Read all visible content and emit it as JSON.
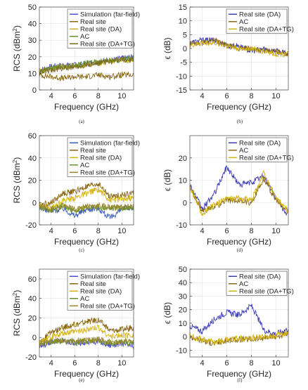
{
  "panels": [
    {
      "caption": "(a)",
      "chart_data": {
        "type": "line",
        "xlabel": "Frequency (GHz)",
        "ylabel_parts": [
          "RCS (dBm",
          "2",
          ")"
        ],
        "xlim": [
          3,
          11
        ],
        "ylim": [
          0,
          50
        ],
        "xticks": [
          4,
          6,
          8,
          10
        ],
        "yticks": [
          0,
          10,
          20,
          30,
          40,
          50
        ],
        "grid": true,
        "legend_position": "top-right",
        "x": [
          3,
          4,
          5,
          6,
          7,
          8,
          9,
          10,
          11
        ],
        "series": [
          {
            "name": "Simulation (far-field)",
            "color": "#5a4fcf",
            "values": [
              12,
              14,
              15,
              15,
              16,
              17,
              18,
              19,
              20
            ]
          },
          {
            "name": "Real site",
            "color": "#8b6914",
            "values": [
              9,
              8,
              7,
              8,
              8,
              9,
              8,
              9,
              9
            ]
          },
          {
            "name": "Real site (DA)",
            "color": "#c9b037",
            "values": [
              11,
              13,
              14,
              14,
              15,
              16,
              17,
              18,
              18
            ]
          },
          {
            "name": "AC",
            "color": "#6a8f2a",
            "values": [
              11,
              13,
              14,
              15,
              16,
              17,
              18,
              18,
              19
            ]
          },
          {
            "name": "Real site (DA+TG)",
            "color": "#7a6a1e",
            "values": [
              11,
              12,
              13,
              14,
              15,
              16,
              17,
              18,
              18
            ]
          }
        ]
      }
    },
    {
      "caption": "(b)",
      "chart_data": {
        "type": "line",
        "xlabel": "Frequency (GHz)",
        "ylabel_parts": [
          "ϵ (dB)",
          "",
          ""
        ],
        "xlim": [
          3,
          11
        ],
        "ylim": [
          -15,
          15
        ],
        "xticks": [
          4,
          6,
          8,
          10
        ],
        "yticks": [
          -15,
          -10,
          -5,
          0,
          5,
          10,
          15
        ],
        "grid": true,
        "legend_position": "top-right",
        "x": [
          3,
          4,
          5,
          6,
          7,
          8,
          9,
          10,
          11
        ],
        "series": [
          {
            "name": "Real site (DA)",
            "color": "#3f3fb3",
            "values": [
              2,
              3,
              3,
              1,
              1,
              -1,
              0,
              -1,
              -2
            ]
          },
          {
            "name": "AC",
            "color": "#8b6914",
            "values": [
              2,
              2,
              3,
              1,
              0,
              0,
              -1,
              -1,
              -2
            ]
          },
          {
            "name": "Real site (DA+TG)",
            "color": "#d4b415",
            "values": [
              1,
              2,
              2,
              1,
              0,
              0,
              -1,
              -2,
              -2
            ]
          }
        ]
      }
    },
    {
      "caption": "(c)",
      "chart_data": {
        "type": "line",
        "xlabel": "Frequency (GHz)",
        "ylabel_parts": [
          "RCS (dBm",
          "2",
          ")"
        ],
        "xlim": [
          3,
          11
        ],
        "ylim": [
          -20,
          60
        ],
        "xticks": [
          4,
          6,
          8,
          10
        ],
        "yticks": [
          -20,
          0,
          20,
          40,
          60
        ],
        "grid": true,
        "legend_position": "top-right",
        "x": [
          3,
          4,
          5,
          6,
          7,
          8,
          9,
          10,
          11
        ],
        "series": [
          {
            "name": "Simulation (far-field)",
            "color": "#3f5fb3",
            "values": [
              -4,
              -8,
              -5,
              -12,
              -6,
              -5,
              -14,
              -6,
              -4
            ]
          },
          {
            "name": "Real site",
            "color": "#8b6914",
            "values": [
              -2,
              0,
              8,
              10,
              14,
              17,
              5,
              7,
              8
            ]
          },
          {
            "name": "Real site (DA)",
            "color": "#d4b415",
            "values": [
              -3,
              -5,
              2,
              4,
              8,
              12,
              2,
              3,
              4
            ]
          },
          {
            "name": "AC",
            "color": "#6a8f2a",
            "values": [
              -4,
              -7,
              -3,
              -8,
              -4,
              -4,
              -5,
              -5,
              -4
            ]
          },
          {
            "name": "Real site (DA+TG)",
            "color": "#9a8a2e",
            "values": [
              -3,
              -6,
              -3,
              -6,
              -3,
              -3,
              -4,
              -4,
              -3
            ]
          }
        ]
      }
    },
    {
      "caption": "(d)",
      "chart_data": {
        "type": "line",
        "xlabel": "Frequency (GHz)",
        "ylabel_parts": [
          "ϵ (dB)",
          "",
          ""
        ],
        "xlim": [
          3,
          11
        ],
        "ylim": [
          -10,
          30
        ],
        "xticks": [
          4,
          6,
          8,
          10
        ],
        "yticks": [
          -10,
          0,
          10,
          20
        ],
        "grid": true,
        "legend_position": "top-right",
        "x": [
          3,
          4,
          5,
          6,
          7,
          8,
          9,
          10,
          11
        ],
        "series": [
          {
            "name": "Real site (DA)",
            "color": "#3f3fb3",
            "values": [
              8,
              -3,
              4,
              16,
              8,
              9,
              12,
              2,
              -6
            ]
          },
          {
            "name": "AC",
            "color": "#8b6914",
            "values": [
              7,
              -4,
              -2,
              1,
              1,
              0,
              11,
              1,
              -4
            ]
          },
          {
            "name": "Real site (DA+TG)",
            "color": "#d4b415",
            "values": [
              7,
              -5,
              -1,
              2,
              2,
              1,
              13,
              2,
              -4
            ]
          }
        ]
      }
    },
    {
      "caption": "(e)",
      "chart_data": {
        "type": "line",
        "xlabel": "Frequency (GHz)",
        "ylabel_parts": [
          "RCS (dBm",
          "2",
          ")"
        ],
        "xlim": [
          3,
          11
        ],
        "ylim": [
          -20,
          70
        ],
        "xticks": [
          4,
          6,
          8,
          10
        ],
        "yticks": [
          -20,
          0,
          20,
          40,
          60
        ],
        "grid": true,
        "legend_position": "top-right",
        "x": [
          3,
          4,
          5,
          6,
          7,
          8,
          9,
          10,
          11
        ],
        "series": [
          {
            "name": "Simulation (far-field)",
            "color": "#4f4fcf",
            "values": [
              -10,
              -4,
              -3,
              -6,
              -5,
              -4,
              -8,
              -6,
              -10
            ]
          },
          {
            "name": "Real site",
            "color": "#8b6914",
            "values": [
              -5,
              5,
              10,
              13,
              16,
              18,
              7,
              8,
              10
            ]
          },
          {
            "name": "Real site (DA)",
            "color": "#d4b415",
            "values": [
              -6,
              0,
              4,
              6,
              8,
              10,
              1,
              2,
              3
            ]
          },
          {
            "name": "AC",
            "color": "#6a8f2a",
            "values": [
              -8,
              -4,
              -4,
              -5,
              -4,
              -3,
              -6,
              -5,
              -6
            ]
          },
          {
            "name": "Real site (DA+TG)",
            "color": "#9a8a2e",
            "values": [
              -7,
              -3,
              -3,
              -4,
              -3,
              -2,
              -5,
              -4,
              -5
            ]
          }
        ]
      }
    },
    {
      "caption": "(f)",
      "chart_data": {
        "type": "line",
        "xlabel": "Frequency (GHz)",
        "ylabel_parts": [
          "ϵ (dB)",
          "",
          ""
        ],
        "xlim": [
          3,
          11
        ],
        "ylim": [
          -15,
          50
        ],
        "xticks": [
          4,
          6,
          8,
          10
        ],
        "yticks": [
          -10,
          0,
          10,
          20,
          30,
          40,
          50
        ],
        "grid": true,
        "legend_position": "top-right",
        "x": [
          3,
          4,
          5,
          6,
          7,
          8,
          9,
          10,
          11
        ],
        "series": [
          {
            "name": "Real site (DA)",
            "color": "#3f3fb3",
            "values": [
              8,
              4,
              13,
              18,
              16,
              23,
              5,
              2,
              6
            ]
          },
          {
            "name": "AC",
            "color": "#8b6914",
            "values": [
              0,
              -3,
              -5,
              -3,
              -2,
              -2,
              -1,
              0,
              2
            ]
          },
          {
            "name": "Real site (DA+TG)",
            "color": "#d4b415",
            "values": [
              1,
              -2,
              -4,
              -2,
              -1,
              -1,
              0,
              1,
              3
            ]
          }
        ]
      }
    }
  ]
}
